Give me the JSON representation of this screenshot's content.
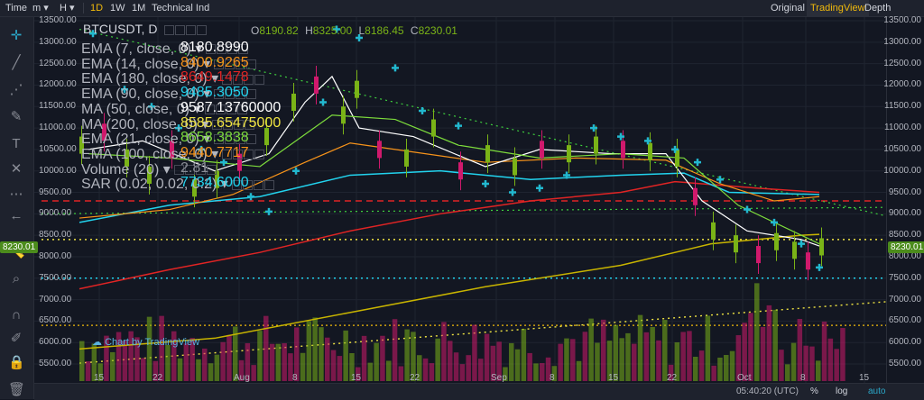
{
  "toolbar": {
    "time_label": "Time",
    "time_select": "m",
    "hour_select": "H",
    "intervals": [
      "1D",
      "1W",
      "1M"
    ],
    "active_interval": "1D",
    "technical": "Technical Ind",
    "view_original": "Original",
    "view_tradingview": "TradingView",
    "view_depth": "Depth"
  },
  "symbol": {
    "title": "BTCUSDT, D",
    "o_label": "O",
    "o": "8190.82",
    "h_label": "H",
    "h": "8325.00",
    "l_label": "L",
    "l": "8186.45",
    "c_label": "C",
    "c": "8230.01"
  },
  "indicators": [
    {
      "name": "EMA (7, close, 0)",
      "value": "8180.8990",
      "color": "#ffffff"
    },
    {
      "name": "EMA (14, close, 0)",
      "value": "8400.9265",
      "color": "#f7931a"
    },
    {
      "name": "EMA (180, close, 0)",
      "value": "8649.1478",
      "color": "#e02424"
    },
    {
      "name": "EMA (90, close, 0)",
      "value": "9485.3050",
      "color": "#22d3ee"
    },
    {
      "name": "MA (50, close, 0)",
      "value": "9587.13760000",
      "color": "#ffffff"
    },
    {
      "name": "MA (200, close, 0)",
      "value": "8585.65475000",
      "color": "#f0e442"
    },
    {
      "name": "EMA (21, close, 0)",
      "value": "8658.3838",
      "color": "#7ddc3c"
    },
    {
      "name": "EMA (100, close, 0)",
      "value": "9440.7717",
      "color": "#f7931a"
    },
    {
      "name": "Volume (20)",
      "value": "2.81",
      "color": "#8a8d96"
    },
    {
      "name": "SAR (0.02, 0.02, 0.2)",
      "value": "7734.6000",
      "color": "#22d3ee"
    }
  ],
  "price_axis": [
    "13500.00",
    "13000.00",
    "12500.00",
    "12000.00",
    "11500.00",
    "11000.00",
    "10500.00",
    "10000.00",
    "9500.00",
    "9000.00",
    "8500.00",
    "8000.00",
    "7500.00",
    "7000.00",
    "6500.00",
    "6000.00",
    "5500.00"
  ],
  "current_price": "8230.01",
  "time_axis": [
    "15",
    "22",
    "Aug",
    "8",
    "15",
    "22",
    "Sep",
    "8",
    "15",
    "22",
    "Oct",
    "8",
    "15"
  ],
  "watermark": "Chart by TradingView",
  "status": {
    "clock": "05:40:20 (UTC)",
    "percent": "%",
    "log": "log",
    "auto": "auto"
  },
  "colors": {
    "bull": "#7ab317",
    "bear": "#d0196c",
    "accent": "#f0b90b",
    "sar": "#22b8cf"
  }
}
